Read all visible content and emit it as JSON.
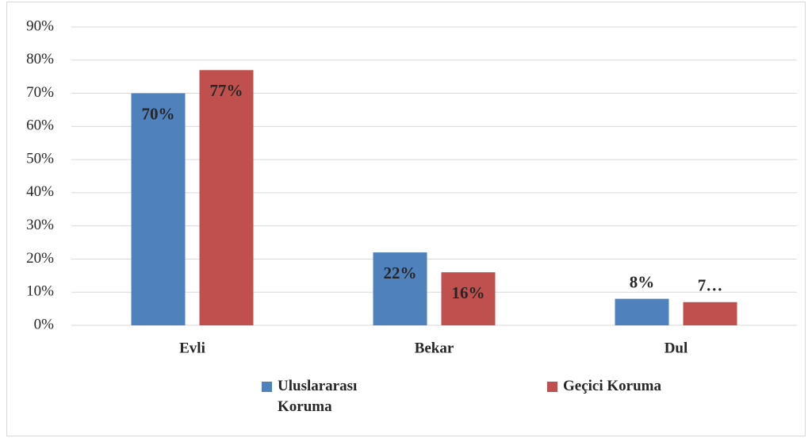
{
  "chart_data": {
    "type": "bar",
    "categories": [
      "Evli",
      "Bekar",
      "Dul"
    ],
    "series": [
      {
        "name": "Uluslararası Koruma",
        "color": "#4f81bd",
        "values": [
          70,
          22,
          8
        ],
        "value_labels": [
          "70%",
          "22%",
          "8%"
        ]
      },
      {
        "name": "Geçici Koruma",
        "color": "#c0504d",
        "values": [
          77,
          16,
          7
        ],
        "value_labels": [
          "77%",
          "16%",
          "7…"
        ]
      }
    ],
    "ylim": [
      0,
      90
    ],
    "yticks": [
      {
        "value": 0,
        "label": "0%"
      },
      {
        "value": 10,
        "label": "10%"
      },
      {
        "value": 20,
        "label": "20%"
      },
      {
        "value": 30,
        "label": "30%"
      },
      {
        "value": 40,
        "label": "40%"
      },
      {
        "value": 50,
        "label": "50%"
      },
      {
        "value": 60,
        "label": "60%"
      },
      {
        "value": 70,
        "label": "70%"
      },
      {
        "value": 80,
        "label": "80%"
      },
      {
        "value": 90,
        "label": "90%"
      }
    ],
    "grid": true,
    "legend": "bottom"
  }
}
